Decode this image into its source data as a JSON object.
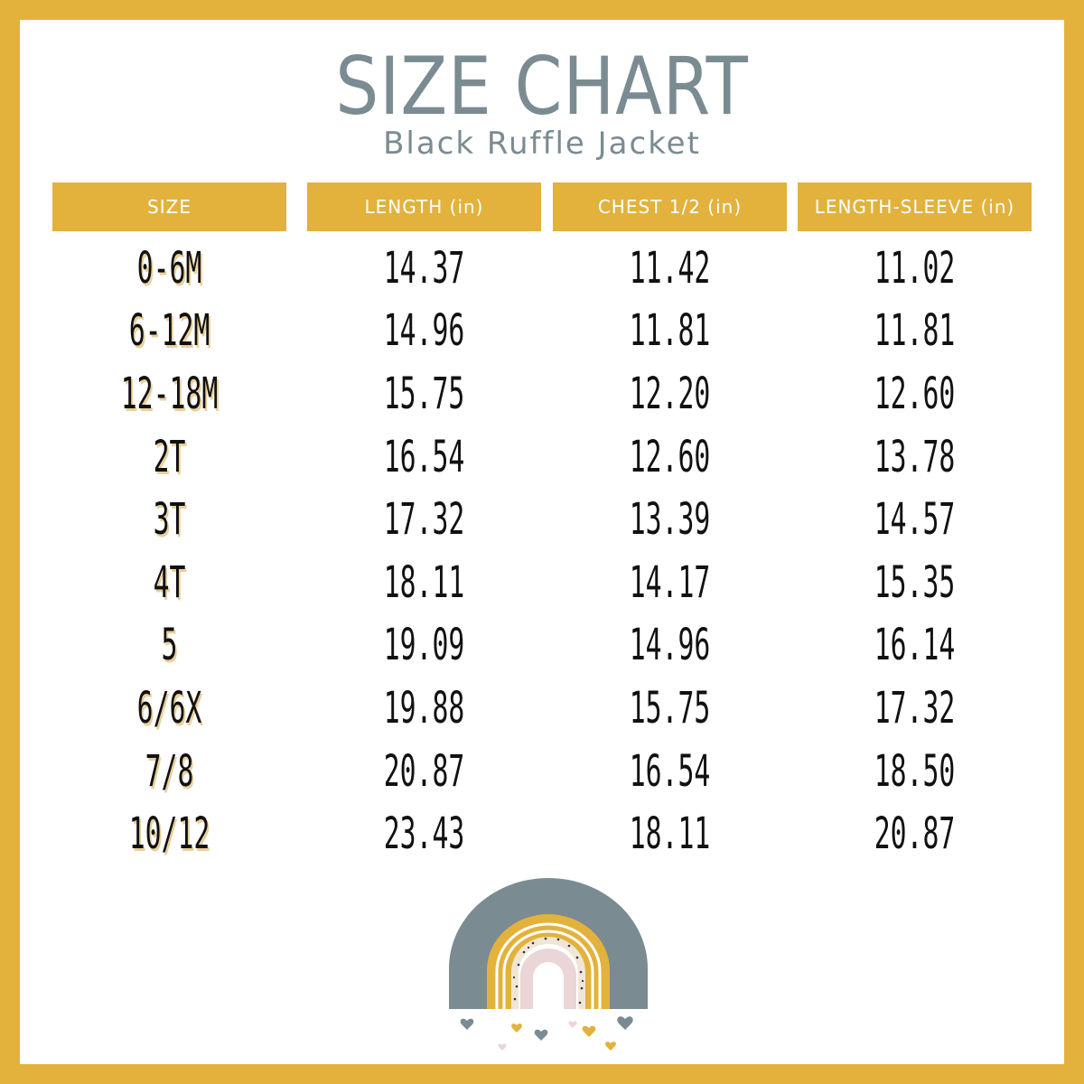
{
  "title": "SIZE CHART",
  "subtitle": "Black Ruffle Jacket",
  "colors": {
    "border": "#E3B23C",
    "header_bg": "#E3B23C",
    "title": "#7B8B92",
    "text": "#111111",
    "rainbow_outer": "#7B8B92",
    "rainbow_middle": "#E3B23C",
    "rainbow_inner": "#EAD6D6"
  },
  "table": {
    "headers": [
      "SIZE",
      "LENGTH (in)",
      "CHEST 1/2 (in)",
      "LENGTH-SLEEVE (in)"
    ],
    "rows": [
      [
        "0-6M",
        "14.37",
        "11.42",
        "11.02"
      ],
      [
        "6-12M",
        "14.96",
        "11.81",
        "11.81"
      ],
      [
        "12-18M",
        "15.75",
        "12.20",
        "12.60"
      ],
      [
        "2T",
        "16.54",
        "12.60",
        "13.78"
      ],
      [
        "3T",
        "17.32",
        "13.39",
        "14.57"
      ],
      [
        "4T",
        "18.11",
        "14.17",
        "15.35"
      ],
      [
        "5",
        "19.09",
        "14.96",
        "16.14"
      ],
      [
        "6/6X",
        "19.88",
        "15.75",
        "17.32"
      ],
      [
        "7/8",
        "20.87",
        "16.54",
        "18.50"
      ],
      [
        "10/12",
        "23.43",
        "18.11",
        "20.87"
      ]
    ]
  },
  "decoration": {
    "icon": "rainbow-with-hearts-icon"
  }
}
